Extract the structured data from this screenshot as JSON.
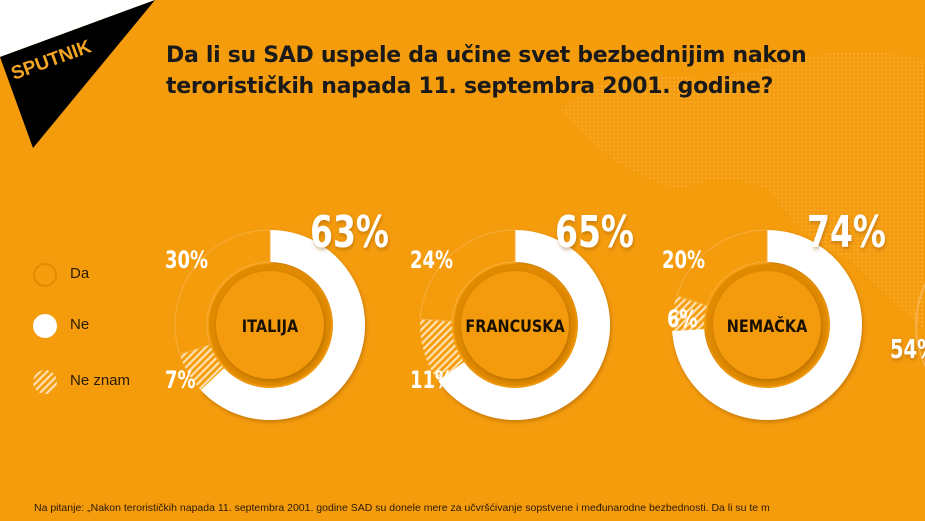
{
  "logo": "SPUTNIK",
  "title_line1": "Da li su SAD uspele da učine svet bezbednijim nakon",
  "title_line2": "terorističkih napada 11. septembra 2001. godine?",
  "footnote": "Na pitanje: „Nakon terorističkih napada 11. septembra 2001. godine SAD su donele mere za učvršćivanje sopstvene i međunarodne bezbednosti. Da li su te m",
  "colors": {
    "background": "#f59c0d",
    "da": "#f59c0d",
    "ne": "#ffffff",
    "ne_znam": "hatched white",
    "logo": "#000000"
  },
  "chart_data": {
    "type": "pie",
    "variant": "donut",
    "legend": {
      "position": "left",
      "entries": [
        "Da",
        "Ne",
        "Ne znam"
      ]
    },
    "categories": [
      "Da",
      "Ne",
      "Ne znam"
    ],
    "charts": [
      {
        "label": "ITALIJA",
        "values": {
          "Da": 30,
          "Ne": 63,
          "Ne znam": 7
        }
      },
      {
        "label": "FRANCUSKA",
        "values": {
          "Da": 24,
          "Ne": 65,
          "Ne znam": 11
        }
      },
      {
        "label": "NEMAČKA",
        "values": {
          "Da": 20,
          "Ne": 74,
          "Ne znam": 6
        }
      },
      {
        "label": "",
        "values": {
          "Da": null,
          "Ne": 54,
          "Ne znam": null
        }
      }
    ]
  }
}
